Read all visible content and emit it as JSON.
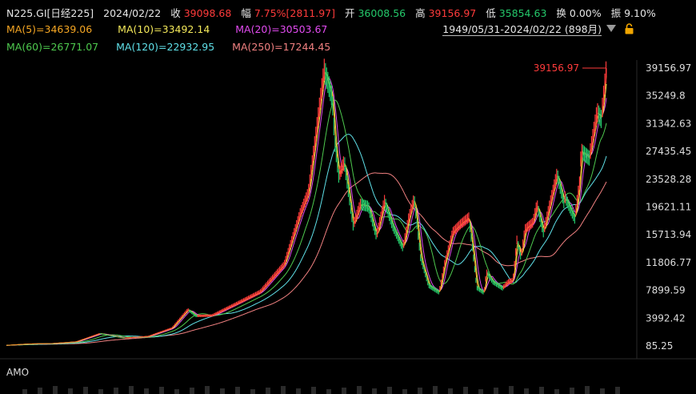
{
  "header": {
    "symbol": "N225.GI[日经225]",
    "date": "2024/02/22",
    "close_label": "收",
    "close_value": "39098.68",
    "change_label": "幅",
    "change_value": "7.75%[2811.97]",
    "open_label": "开",
    "open_value": "36008.56",
    "high_label": "高",
    "high_value": "39156.97",
    "low_label": "低",
    "low_value": "35854.63",
    "turnover_label": "换",
    "turnover_value": "0.00%",
    "amplitude_label": "振",
    "amplitude_value": "9.10%"
  },
  "ma": [
    {
      "label": "MA(5)=34639.06",
      "color": "#f5a623"
    },
    {
      "label": "MA(10)=33492.14",
      "color": "#f3e85a"
    },
    {
      "label": "MA(20)=30503.67",
      "color": "#e24bf0"
    },
    {
      "label": "MA(60)=26771.07",
      "color": "#4ec94e"
    },
    {
      "label": "MA(120)=22932.95",
      "color": "#5fe0e8"
    },
    {
      "label": "MA(250)=17244.45",
      "color": "#f08080"
    }
  ],
  "range_label": "1949/05/31-2024/02/22 (898月)",
  "amo_label": "AMO",
  "colors": {
    "up": "#ff3b3b",
    "down": "#24c86a",
    "axis_text": "#dddddd",
    "grid": "#1f1f1f"
  },
  "chart_data": {
    "type": "line",
    "title": "",
    "xlabel": "",
    "ylabel": "",
    "ylim": [
      85.25,
      39156.97
    ],
    "y_ticks": [
      "39156.97",
      "35249.8",
      "31342.63",
      "27435.45",
      "23528.28",
      "19621.11",
      "15713.94",
      "11806.77",
      "7899.59",
      "3992.42",
      "85.25"
    ],
    "max_annotation": "39156.97",
    "x_range": [
      "1949/05/31",
      "2024/02/22"
    ],
    "x": [
      1949.4,
      1952,
      1955,
      1958,
      1961,
      1964,
      1967,
      1970,
      1972,
      1973,
      1975,
      1978,
      1981,
      1984,
      1986,
      1987,
      1988,
      1989,
      1989.99,
      1990.3,
      1990.8,
      1991.5,
      1992.6,
      1993.5,
      1994.5,
      1995.5,
      1996.5,
      1997.5,
      1998.8,
      1999.5,
      2000.2,
      2001,
      2002,
      2003.3,
      2004,
      2005,
      2006,
      2007,
      2007.5,
      2008,
      2008.9,
      2009.2,
      2010,
      2011.2,
      2011.9,
      2012.5,
      2013,
      2013.5,
      2014,
      2015,
      2015.5,
      2016.3,
      2017,
      2018,
      2018.9,
      2019,
      2020.2,
      2020.8,
      2021,
      2022,
      2023,
      2023.5,
      2024.15
    ],
    "series": [
      {
        "values": [
          176,
          362,
          425,
          666,
          1829,
          1200,
          1430,
          2600,
          5207,
          4306,
          4359,
          6001,
          7682,
          11542,
          18701,
          21564,
          30159,
          38915,
          35000,
          29000,
          24000,
          26000,
          17000,
          20000,
          19700,
          15500,
          20500,
          17000,
          13842,
          18000,
          20833,
          12500,
          8579,
          7607,
          11700,
          16111,
          17225,
          18138,
          13500,
          8276,
          7568,
          10500,
          9100,
          8200,
          9100,
          9300,
          15000,
          12500,
          16500,
          17451,
          20000,
          16000,
          19500,
          24270,
          20015,
          21000,
          18000,
          23000,
          27500,
          26500,
          33000,
          32000,
          39098
        ]
      }
    ]
  }
}
